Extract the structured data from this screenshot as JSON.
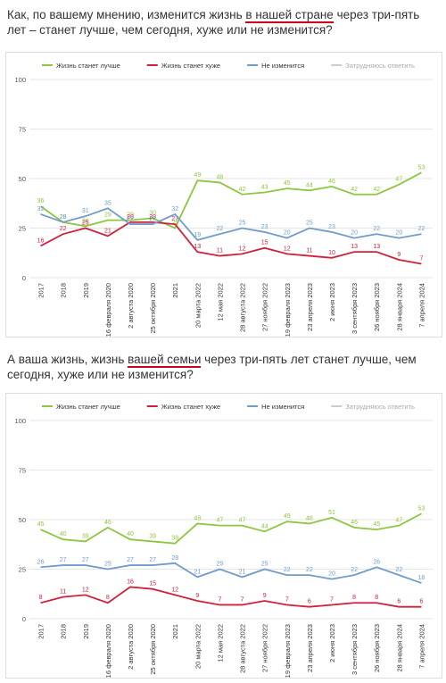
{
  "chart_data": [
    {
      "type": "line",
      "title": {
        "before": "Как, по вашему мнению, изменится жизнь ",
        "underlined": "в нашей стране",
        "after": " через три-пять лет – станет лучше, чем сегодня, хуже или не изменится?"
      },
      "categories": [
        "2017",
        "2018",
        "2019",
        "16 февраля 2020",
        "2 августа 2020",
        "25 октября 2020",
        "2021",
        "20 марта 2022",
        "12 мая 2022",
        "28 августа 2022",
        "27 ноября 2022",
        "19 февраля 2023",
        "23 апреля 2023",
        "2 июня 2023",
        "3 сентября 2023",
        "26 ноября 2023",
        "28 января 2024",
        "7 апреля 2024"
      ],
      "series": [
        {
          "name": "Жизнь станет лучше",
          "color": "#8dc63f",
          "values": [
            36,
            28,
            26,
            29,
            29,
            30,
            25,
            49,
            48,
            42,
            43,
            45,
            44,
            46,
            42,
            42,
            47,
            53
          ]
        },
        {
          "name": "Жизнь станет хуже",
          "color": "#d0213c",
          "values": [
            16,
            22,
            25,
            21,
            28,
            28,
            27,
            13,
            11,
            12,
            15,
            12,
            11,
            10,
            13,
            13,
            9,
            7
          ]
        },
        {
          "name": "Не изменится",
          "color": "#6f9ccc",
          "values": [
            32,
            28,
            31,
            35,
            27,
            27,
            32,
            19,
            22,
            25,
            23,
            20,
            25,
            23,
            20,
            22,
            20,
            22
          ]
        },
        {
          "name": "Затрудняюсь ответить",
          "color": "#cccccc",
          "hidden": true,
          "values": [
            null,
            null,
            null,
            null,
            null,
            null,
            null,
            null,
            null,
            null,
            null,
            null,
            null,
            null,
            null,
            null,
            null,
            null
          ]
        }
      ],
      "ylim": [
        0,
        100
      ],
      "yticks": [
        0,
        25,
        50,
        75,
        100
      ],
      "grid": true
    },
    {
      "type": "line",
      "title": {
        "before": "А ваша жизнь, жизнь ",
        "underlined": "вашей семьи",
        "after": " через три-пять лет станет лучше, чем сегодня, хуже или не изменится?"
      },
      "categories": [
        "2017",
        "2018",
        "2019",
        "16 февраля 2020",
        "2 августа 2020",
        "25 октября 2020",
        "2021",
        "20 марта 2022",
        "12 мая 2022",
        "28 августа 2022",
        "27 ноября 2022",
        "19 февраля 2023",
        "23 апреля 2023",
        "2 июня 2023",
        "3 сентября 2023",
        "26 ноября 2023",
        "28 января 2024",
        "7 апреля 2024"
      ],
      "series": [
        {
          "name": "Жизнь станет лучше",
          "color": "#8dc63f",
          "values": [
            45,
            40,
            39,
            46,
            40,
            39,
            38,
            48,
            47,
            47,
            44,
            49,
            48,
            51,
            46,
            45,
            47,
            53
          ]
        },
        {
          "name": "Жизнь станет хуже",
          "color": "#d0213c",
          "values": [
            8,
            11,
            12,
            8,
            16,
            15,
            12,
            9,
            7,
            7,
            9,
            7,
            6,
            7,
            8,
            8,
            6,
            6
          ]
        },
        {
          "name": "Не изменится",
          "color": "#6f9ccc",
          "values": [
            26,
            27,
            27,
            25,
            27,
            27,
            28,
            21,
            25,
            21,
            25,
            22,
            22,
            20,
            22,
            26,
            22,
            18
          ]
        },
        {
          "name": "Затрудняюсь ответить",
          "color": "#cccccc",
          "hidden": true,
          "values": [
            null,
            null,
            null,
            null,
            null,
            null,
            null,
            null,
            null,
            null,
            null,
            null,
            null,
            null,
            null,
            null,
            null,
            null
          ]
        }
      ],
      "ylim": [
        0,
        100
      ],
      "yticks": [
        0,
        25,
        50,
        75,
        100
      ],
      "grid": true
    }
  ]
}
